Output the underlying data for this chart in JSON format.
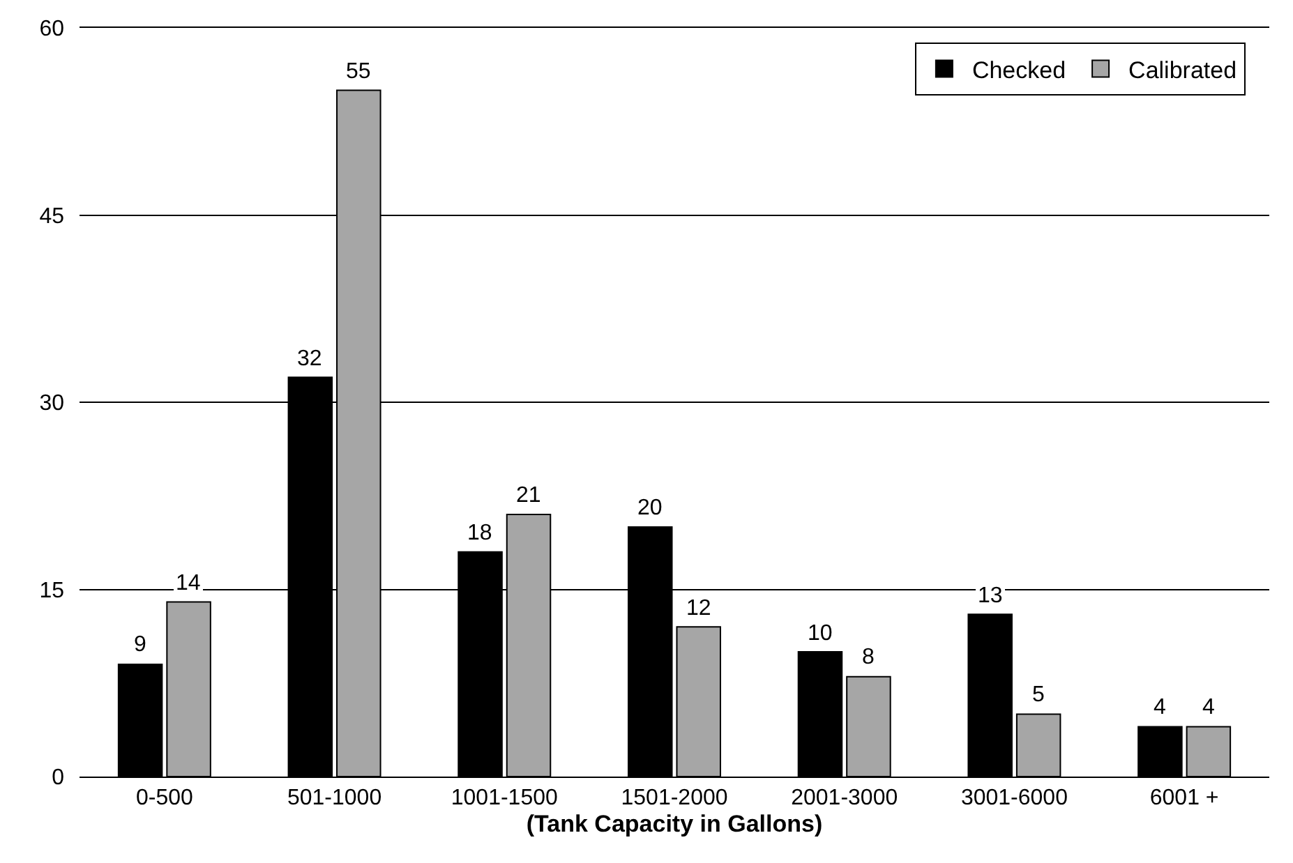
{
  "chart_data": {
    "type": "bar",
    "xlabel": "(Tank Capacity in Gallons)",
    "categories": [
      "0-500",
      "501-1000",
      "1001-1500",
      "1501-2000",
      "2001-3000",
      "3001-6000",
      "6001 +"
    ],
    "series": [
      {
        "name": "Checked",
        "color": "#000000",
        "values": [
          9,
          32,
          18,
          20,
          10,
          13,
          4
        ]
      },
      {
        "name": "Calibrated",
        "color": "#a6a6a6",
        "values": [
          14,
          55,
          21,
          12,
          8,
          5,
          4
        ]
      }
    ],
    "ylim": [
      0,
      60
    ],
    "yticks": [
      0,
      15,
      30,
      45,
      60
    ],
    "grid": "y",
    "legend": "top right",
    "data_labels": true
  }
}
